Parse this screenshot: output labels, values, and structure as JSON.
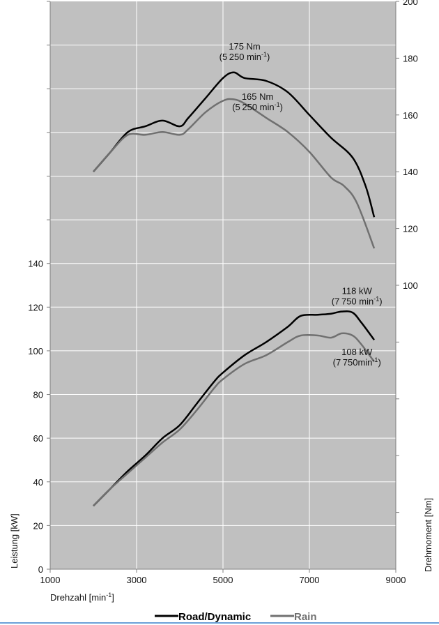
{
  "chart_data": {
    "type": "line",
    "x_axis": {
      "label": "Drehzahl [min",
      "label_sup": "-1",
      "label_tail": "]",
      "range": [
        1000,
        9000
      ],
      "ticks": [
        1000,
        3000,
        5000,
        7000,
        9000
      ]
    },
    "y_left": {
      "label": "Leistung [kW]",
      "range": [
        0,
        260
      ],
      "ticks": [
        0,
        20,
        40,
        60,
        80,
        100,
        120,
        140
      ],
      "minor_ticks": [
        160,
        180,
        200,
        220,
        240,
        260
      ]
    },
    "y_right": {
      "label": "Drehmoment [Nm]",
      "range": [
        0,
        200
      ],
      "ticks": [
        100,
        120,
        140,
        160,
        180,
        200
      ],
      "minor_ticks": [
        20,
        40,
        60,
        80
      ]
    },
    "grid": true,
    "legend_position": "bottom",
    "series": [
      {
        "name": "Road/Dynamic",
        "quantity": "power",
        "axis": "left",
        "color": "#000000",
        "points": [
          [
            2000,
            29
          ],
          [
            2400,
            37
          ],
          [
            2800,
            45
          ],
          [
            3200,
            52
          ],
          [
            3600,
            60
          ],
          [
            4000,
            66
          ],
          [
            4400,
            76
          ],
          [
            4800,
            86
          ],
          [
            5000,
            90
          ],
          [
            5500,
            98
          ],
          [
            6000,
            104
          ],
          [
            6500,
            111
          ],
          [
            6800,
            116
          ],
          [
            7200,
            116.5
          ],
          [
            7500,
            117
          ],
          [
            7750,
            118
          ],
          [
            8000,
            117.5
          ],
          [
            8200,
            113
          ],
          [
            8500,
            105
          ]
        ]
      },
      {
        "name": "Rain",
        "quantity": "power",
        "axis": "left",
        "color": "#707070",
        "points": [
          [
            2000,
            29
          ],
          [
            2400,
            37
          ],
          [
            2800,
            44
          ],
          [
            3200,
            51
          ],
          [
            3600,
            58
          ],
          [
            4000,
            64
          ],
          [
            4400,
            73
          ],
          [
            4800,
            83
          ],
          [
            5000,
            87
          ],
          [
            5500,
            94
          ],
          [
            6000,
            98
          ],
          [
            6500,
            104
          ],
          [
            6800,
            107
          ],
          [
            7200,
            107
          ],
          [
            7500,
            106
          ],
          [
            7750,
            108
          ],
          [
            8000,
            107
          ],
          [
            8200,
            103
          ],
          [
            8500,
            95
          ]
        ]
      },
      {
        "name": "Road/Dynamic",
        "quantity": "torque",
        "axis": "right",
        "color": "#000000",
        "points": [
          [
            2000,
            140
          ],
          [
            2400,
            147
          ],
          [
            2800,
            154
          ],
          [
            3200,
            156
          ],
          [
            3600,
            158
          ],
          [
            4000,
            156
          ],
          [
            4200,
            159
          ],
          [
            4600,
            166
          ],
          [
            5000,
            173
          ],
          [
            5250,
            175
          ],
          [
            5500,
            173
          ],
          [
            6000,
            172
          ],
          [
            6500,
            168
          ],
          [
            7000,
            160
          ],
          [
            7500,
            152
          ],
          [
            8000,
            145
          ],
          [
            8300,
            135
          ],
          [
            8500,
            124
          ]
        ]
      },
      {
        "name": "Rain",
        "quantity": "torque",
        "axis": "right",
        "color": "#707070",
        "points": [
          [
            2000,
            140
          ],
          [
            2400,
            147
          ],
          [
            2800,
            153
          ],
          [
            3200,
            153
          ],
          [
            3600,
            154
          ],
          [
            4000,
            153
          ],
          [
            4200,
            155
          ],
          [
            4600,
            161
          ],
          [
            5000,
            165
          ],
          [
            5250,
            165.5
          ],
          [
            5500,
            164
          ],
          [
            6000,
            159
          ],
          [
            6500,
            154
          ],
          [
            7000,
            147
          ],
          [
            7500,
            138
          ],
          [
            7800,
            135
          ],
          [
            8100,
            129
          ],
          [
            8500,
            113
          ]
        ]
      }
    ],
    "annotations": [
      {
        "line1": "175 Nm",
        "line2_pre": "(5 250 min",
        "line2_sup": "-1",
        "line2_post": ")",
        "at": [
          5500,
          238
        ]
      },
      {
        "line1": "165 Nm",
        "line2_pre": "(5 250 min",
        "line2_sup": "-1",
        "line2_post": ")",
        "at": [
          5800,
          215
        ]
      },
      {
        "line1": "118 kW",
        "line2_pre": "(7 750 min",
        "line2_sup": "-1",
        "line2_post": ")",
        "at": [
          8100,
          126
        ]
      },
      {
        "line1": "108 kW",
        "line2_pre": "(7 750min",
        "line2_sup": "-1",
        "line2_post": ")",
        "at": [
          8100,
          98
        ]
      }
    ]
  },
  "legend": [
    {
      "label": "Road/Dynamic",
      "color": "#000000"
    },
    {
      "label": "Rain",
      "color": "#707070"
    }
  ]
}
